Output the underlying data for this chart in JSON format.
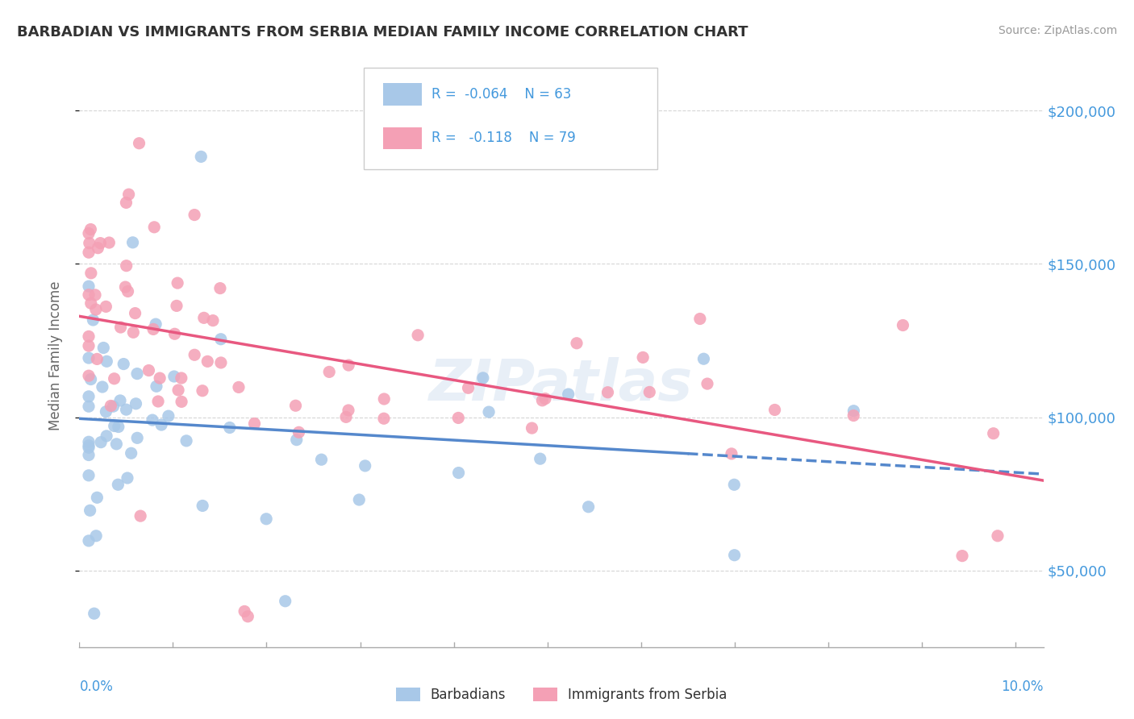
{
  "title": "BARBADIAN VS IMMIGRANTS FROM SERBIA MEDIAN FAMILY INCOME CORRELATION CHART",
  "source": "Source: ZipAtlas.com",
  "ylabel": "Median Family Income",
  "xlim": [
    0.0,
    0.103
  ],
  "ylim": [
    25000,
    215000
  ],
  "yticks": [
    50000,
    100000,
    150000,
    200000
  ],
  "legend_entries": [
    {
      "label": "Barbadians",
      "R": -0.064,
      "N": 63,
      "color": "#a8c8e8"
    },
    {
      "label": "Immigrants from Serbia",
      "R": -0.118,
      "N": 79,
      "color": "#f4a0b5"
    }
  ],
  "barbadians_color": "#a8c8e8",
  "serbia_color": "#f4a0b5",
  "barbadians_line_color": "#5588cc",
  "serbia_line_color": "#e85880",
  "background_color": "#ffffff",
  "watermark": "ZIPatlas",
  "tick_color": "#4499dd",
  "title_color": "#333333",
  "source_color": "#999999",
  "ylabel_color": "#666666"
}
